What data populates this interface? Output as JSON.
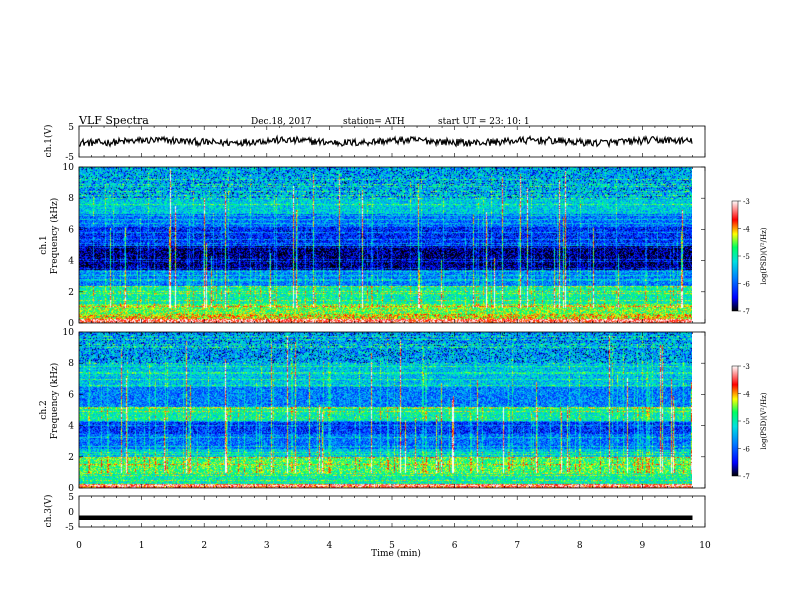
{
  "header": {
    "title": "VLF  Spectra",
    "date": "Dec.18, 2017",
    "station": "station= ATH",
    "start": "start  UT  =    23: 10: 1"
  },
  "chart_data": [
    {
      "type": "line",
      "ylabel": "ch.1(V)",
      "ylim": [
        -5,
        5
      ],
      "yticks": [
        "5",
        "-5"
      ],
      "xlim": [
        0,
        10
      ],
      "x_range_min": [
        0,
        9.8
      ],
      "baseline": 0,
      "color": "#000000"
    },
    {
      "type": "heatmap",
      "ylabel": "ch.1\nFrequency (kHz)",
      "ylabel_top": "ch.1",
      "ylabel_bottom": "Frequency (kHz)",
      "ylim": [
        0,
        10
      ],
      "yticks": [
        "0",
        "2",
        "4",
        "6",
        "8",
        "10"
      ],
      "xlim": [
        0,
        10
      ],
      "data_x_range": [
        0,
        9.8
      ],
      "colorbar": {
        "label": "log(PSD)(V²/Hz)",
        "range": [
          -7,
          -3
        ],
        "ticks": [
          "-3",
          "-4",
          "-5",
          "-6",
          "-7"
        ],
        "colors": [
          "#000000",
          "#0000ff",
          "#0080ff",
          "#00e0e0",
          "#00ff60",
          "#ffff00",
          "#ff0000",
          "#ffffff"
        ]
      }
    },
    {
      "type": "heatmap",
      "ylabel": "ch.2\nFrequency (kHz)",
      "ylabel_top": "ch.2",
      "ylabel_bottom": "Frequency (kHz)",
      "ylim": [
        0,
        10
      ],
      "yticks": [
        "0",
        "2",
        "4",
        "6",
        "8",
        "10"
      ],
      "xlim": [
        0,
        10
      ],
      "data_x_range": [
        0,
        9.8
      ],
      "colorbar": {
        "label": "log(PSD)(V²/Hz)",
        "range": [
          -7,
          -3
        ],
        "ticks": [
          "-3",
          "-4",
          "-5",
          "-6",
          "-7"
        ],
        "colors": [
          "#000000",
          "#0000ff",
          "#0080ff",
          "#00e0e0",
          "#00ff60",
          "#ffff00",
          "#ff0000",
          "#ffffff"
        ]
      }
    },
    {
      "type": "line",
      "ylabel": "ch.3(V)",
      "ylim": [
        -5,
        5
      ],
      "yticks": [
        "5",
        "0",
        "-5"
      ],
      "xlim": [
        0,
        10
      ],
      "x_range": [
        0,
        9.8
      ],
      "value": -2,
      "color": "#000000",
      "xlabel": "Time  (min)",
      "xticks": [
        "0",
        "1",
        "2",
        "3",
        "4",
        "5",
        "6",
        "7",
        "8",
        "9",
        "10"
      ]
    }
  ]
}
